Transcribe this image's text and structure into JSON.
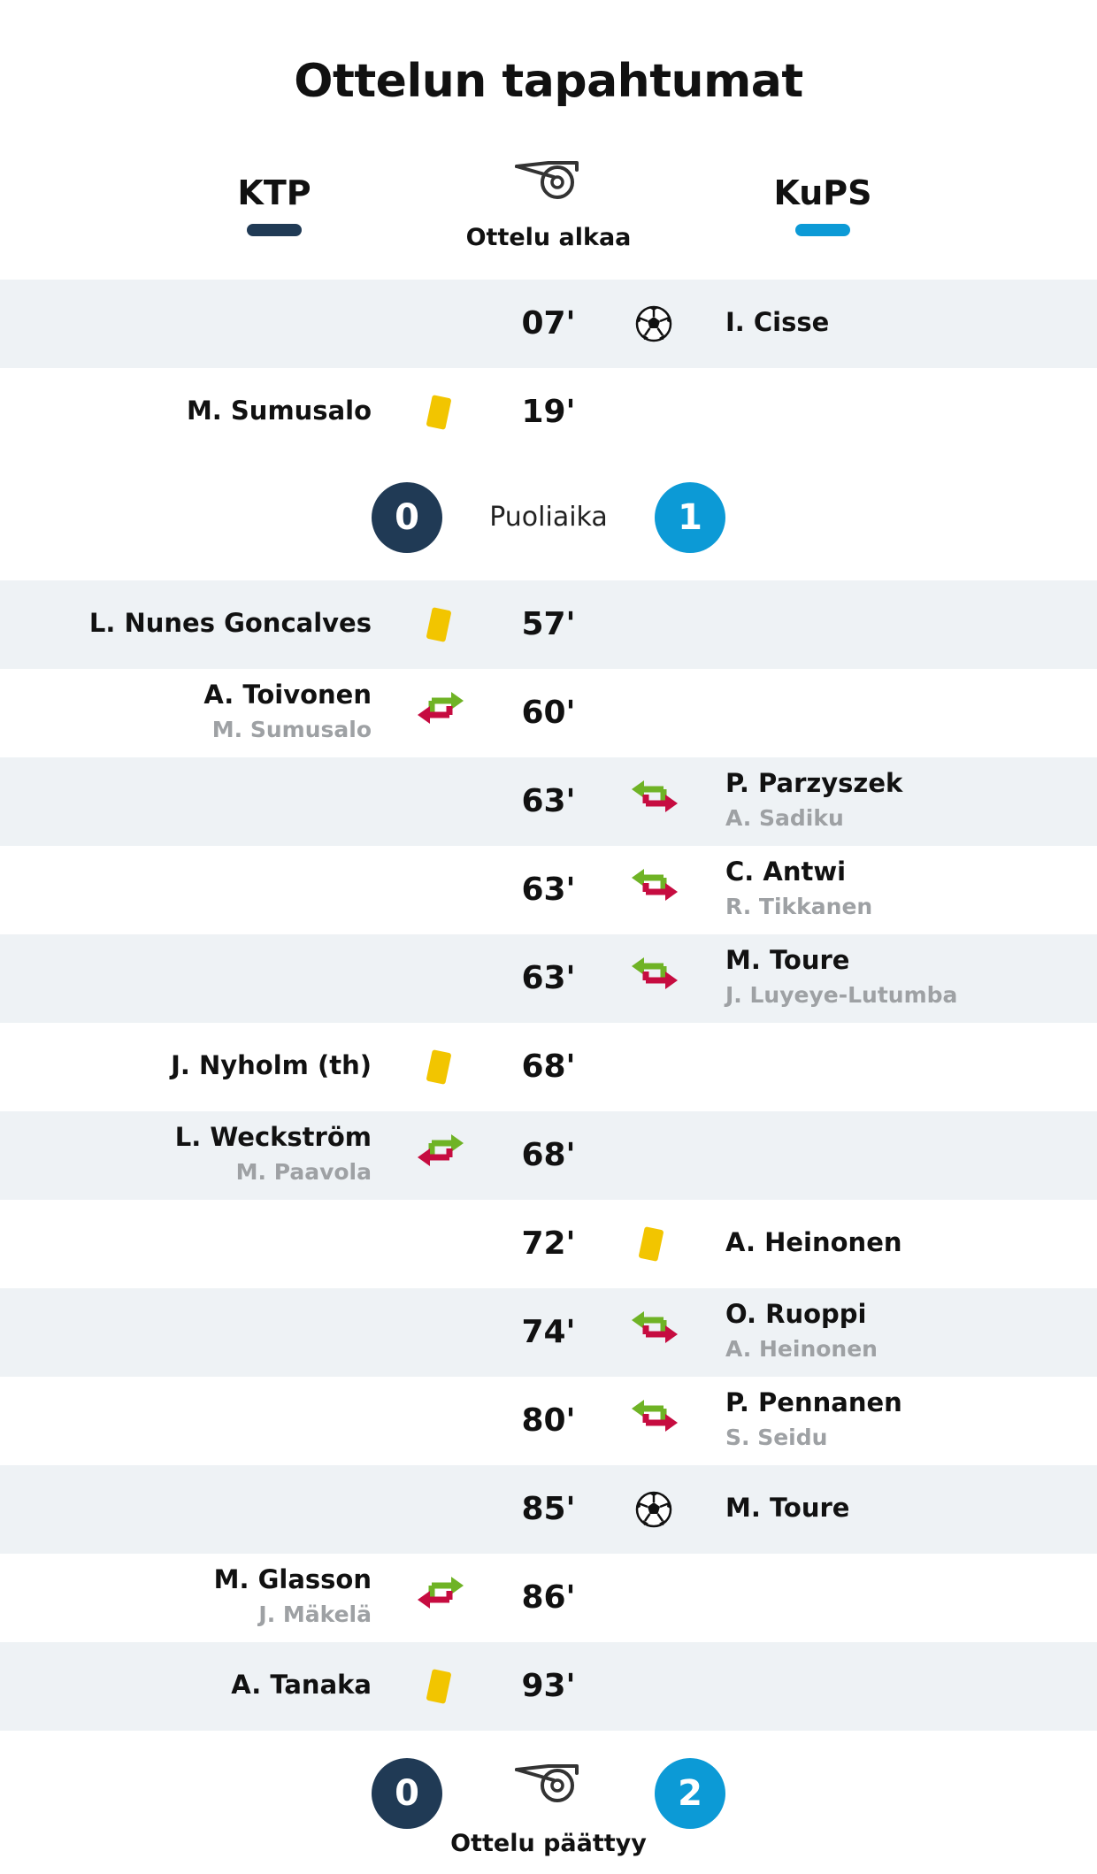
{
  "title": "Ottelun tapahtumat",
  "colors": {
    "home": "#203a55",
    "away": "#0c9ad6",
    "shade": "#eef2f5",
    "sub_out": "#9ea1a4",
    "card_yellow": "#f2c500",
    "arrow_in": "#6fb325",
    "arrow_out": "#c60c40"
  },
  "teams": {
    "home": "KTP",
    "away": "KuPS"
  },
  "start": {
    "label": "Ottelu alkaa",
    "icon": "whistle-icon"
  },
  "halftime": {
    "label": "Puoliaika",
    "home_score": "0",
    "away_score": "1"
  },
  "fulltime": {
    "label": "Ottelu päättyy",
    "home_score": "0",
    "away_score": "2",
    "icon": "whistle-icon"
  },
  "events": [
    {
      "minute": "07'",
      "side": "away",
      "type": "goal",
      "icon": "soccer-ball-icon",
      "player": "I. Cisse"
    },
    {
      "minute": "19'",
      "side": "home",
      "type": "yellow-card",
      "icon": "yellow-card-icon",
      "player": "M. Sumusalo"
    },
    {
      "minute": "57'",
      "side": "home",
      "type": "yellow-card",
      "icon": "yellow-card-icon",
      "player": "L. Nunes Goncalves"
    },
    {
      "minute": "60'",
      "side": "home",
      "type": "substitution",
      "icon": "substitution-icon",
      "player": "A. Toivonen",
      "player_out": "M. Sumusalo"
    },
    {
      "minute": "63'",
      "side": "away",
      "type": "substitution",
      "icon": "substitution-icon",
      "player": "P. Parzyszek",
      "player_out": "A. Sadiku"
    },
    {
      "minute": "63'",
      "side": "away",
      "type": "substitution",
      "icon": "substitution-icon",
      "player": "C. Antwi",
      "player_out": "R. Tikkanen"
    },
    {
      "minute": "63'",
      "side": "away",
      "type": "substitution",
      "icon": "substitution-icon",
      "player": "M. Toure",
      "player_out": "J. Luyeye-Lutumba"
    },
    {
      "minute": "68'",
      "side": "home",
      "type": "yellow-card",
      "icon": "yellow-card-icon",
      "player": "J. Nyholm (th)"
    },
    {
      "minute": "68'",
      "side": "home",
      "type": "substitution",
      "icon": "substitution-icon",
      "player": "L. Weckström",
      "player_out": "M. Paavola"
    },
    {
      "minute": "72'",
      "side": "away",
      "type": "yellow-card",
      "icon": "yellow-card-icon",
      "player": "A. Heinonen"
    },
    {
      "minute": "74'",
      "side": "away",
      "type": "substitution",
      "icon": "substitution-icon",
      "player": "O. Ruoppi",
      "player_out": "A. Heinonen"
    },
    {
      "minute": "80'",
      "side": "away",
      "type": "substitution",
      "icon": "substitution-icon",
      "player": "P. Pennanen",
      "player_out": "S. Seidu"
    },
    {
      "minute": "85'",
      "side": "away",
      "type": "goal",
      "icon": "soccer-ball-icon",
      "player": "M. Toure"
    },
    {
      "minute": "86'",
      "side": "home",
      "type": "substitution",
      "icon": "substitution-icon",
      "player": "M. Glasson",
      "player_out": "J. Mäkelä"
    },
    {
      "minute": "93'",
      "side": "home",
      "type": "yellow-card",
      "icon": "yellow-card-icon",
      "player": "A. Tanaka"
    }
  ]
}
